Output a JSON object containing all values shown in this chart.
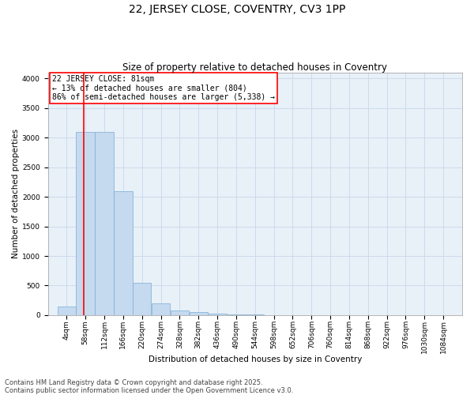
{
  "title": "22, JERSEY CLOSE, COVENTRY, CV3 1PP",
  "subtitle": "Size of property relative to detached houses in Coventry",
  "xlabel": "Distribution of detached houses by size in Coventry",
  "ylabel": "Number of detached properties",
  "bar_color": "#c5d9ef",
  "bar_edge_color": "#7aadd4",
  "grid_color": "#c8d8ea",
  "background_color": "#e8f0f8",
  "vline_x": 81,
  "vline_color": "red",
  "annotation_text": "22 JERSEY CLOSE: 81sqm\n← 13% of detached houses are smaller (804)\n86% of semi-detached houses are larger (5,338) →",
  "annotation_box_color": "red",
  "bin_edges": [
    4,
    58,
    112,
    166,
    220,
    274,
    328,
    382,
    436,
    490,
    544,
    598,
    652,
    706,
    760,
    814,
    868,
    922,
    976,
    1030,
    1084
  ],
  "bin_values": [
    150,
    3100,
    3100,
    2100,
    550,
    200,
    80,
    50,
    20,
    10,
    5,
    2,
    1,
    1,
    0,
    0,
    0,
    0,
    0,
    0
  ],
  "ylim": [
    0,
    4100
  ],
  "yticks": [
    0,
    500,
    1000,
    1500,
    2000,
    2500,
    3000,
    3500,
    4000
  ],
  "footer_text": "Contains HM Land Registry data © Crown copyright and database right 2025.\nContains public sector information licensed under the Open Government Licence v3.0.",
  "title_fontsize": 10,
  "subtitle_fontsize": 8.5,
  "axis_label_fontsize": 7.5,
  "tick_fontsize": 6.5,
  "footer_fontsize": 6,
  "annotation_fontsize": 7
}
